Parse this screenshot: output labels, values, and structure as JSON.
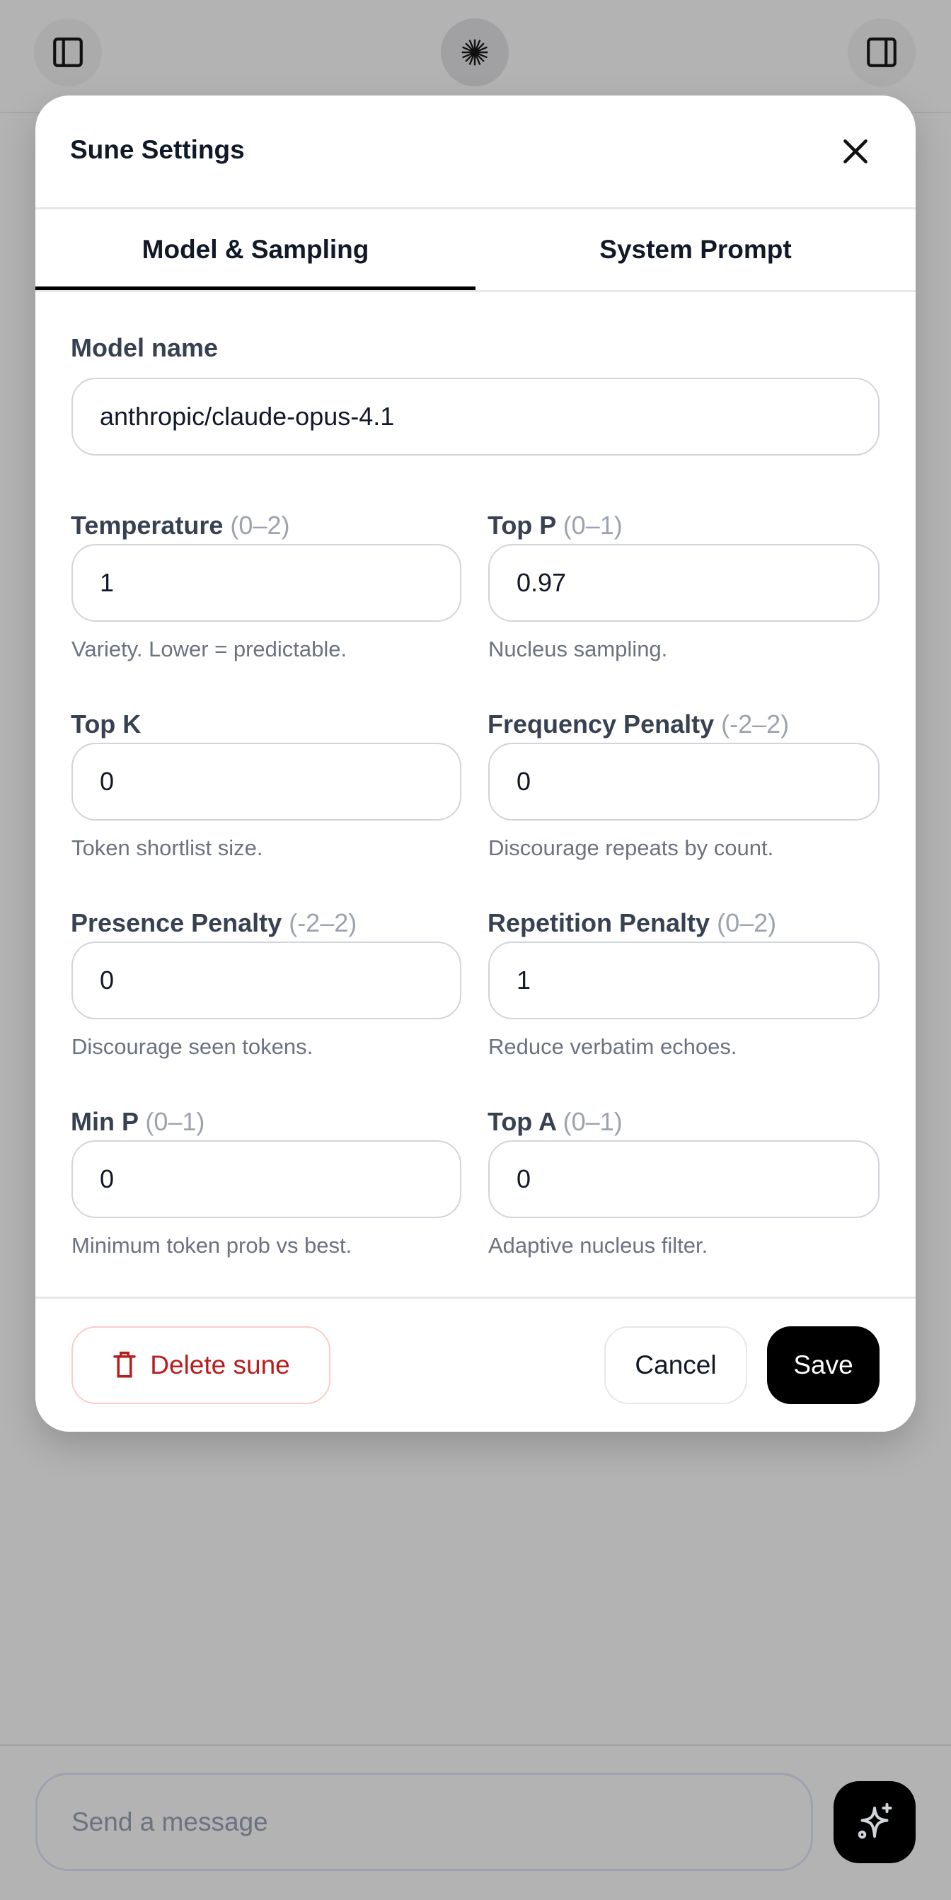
{
  "topbar": {
    "left_icon": "sidebar-left-icon",
    "center_icon": "starburst-icon",
    "right_icon": "sidebar-right-icon"
  },
  "modal": {
    "title": "Sune Settings",
    "tabs": [
      {
        "label": "Model & Sampling",
        "active": true
      },
      {
        "label": "System Prompt",
        "active": false
      }
    ],
    "model": {
      "label": "Model name",
      "value": "anthropic/claude-opus-4.1"
    },
    "fields": [
      {
        "label": "Temperature",
        "range": "(0–2)",
        "value": "1",
        "help": "Variety. Lower = predictable."
      },
      {
        "label": "Top P",
        "range": "(0–1)",
        "value": "0.97",
        "help": "Nucleus sampling."
      },
      {
        "label": "Top K",
        "range": "",
        "value": "0",
        "help": "Token shortlist size."
      },
      {
        "label": "Frequency Penalty",
        "range": "(-2–2)",
        "value": "0",
        "help": "Discourage repeats by count."
      },
      {
        "label": "Presence Penalty",
        "range": "(-2–2)",
        "value": "0",
        "help": "Discourage seen tokens."
      },
      {
        "label": "Repetition Penalty",
        "range": "(0–2)",
        "value": "1",
        "help": "Reduce verbatim echoes."
      },
      {
        "label": "Min P",
        "range": "(0–1)",
        "value": "0",
        "help": "Minimum token prob vs best."
      },
      {
        "label": "Top A",
        "range": "(0–1)",
        "value": "0",
        "help": "Adaptive nucleus filter."
      }
    ],
    "footer": {
      "delete_label": "Delete sune",
      "cancel_label": "Cancel",
      "save_label": "Save"
    }
  },
  "composer": {
    "placeholder": "Send a message"
  },
  "colors": {
    "danger": "#b91c1c",
    "primary": "#000000",
    "overlay": "#b3b3b3"
  }
}
